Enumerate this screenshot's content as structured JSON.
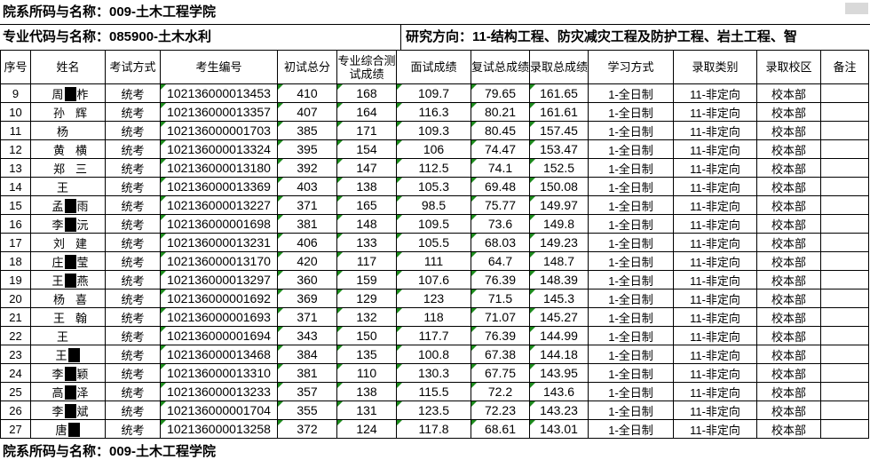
{
  "titles": {
    "dept_line": "院系所码与名称：009-土木工程学院",
    "major_line": "专业代码与名称：085900-土木水利",
    "direction_line": "研究方向：11-结构工程、防灾减灾工程及防护工程、岩土工程、智",
    "bottom_clipped_line": "院系所码与名称：009-土木工程学院"
  },
  "columns": [
    "序号",
    "姓名",
    "考试方式",
    "考生编号",
    "初试总分",
    "专业综合测试成绩",
    "面试成绩",
    "复试总成绩",
    "录取总成绩",
    "学习方式",
    "录取类别",
    "录取校区",
    "备注"
  ],
  "rows": [
    {
      "no": "9",
      "name": "周",
      "redact": "box",
      "frag": "柞",
      "exam": "统考",
      "id": "102136000013453",
      "init": "410",
      "prof": "168",
      "interview": "109.7",
      "retest": "79.65",
      "total": "161.65",
      "study": "1-全日制",
      "category": "11-非定向",
      "campus": "校本部",
      "note": ""
    },
    {
      "no": "10",
      "name": "孙",
      "redact": "gap",
      "frag": "辉",
      "exam": "统考",
      "id": "102136000013357",
      "init": "407",
      "prof": "164",
      "interview": "116.3",
      "retest": "80.21",
      "total": "161.61",
      "study": "1-全日制",
      "category": "11-非定向",
      "campus": "校本部",
      "note": ""
    },
    {
      "no": "11",
      "name": "杨",
      "redact": "gap",
      "frag": "",
      "exam": "统考",
      "id": "102136000001703",
      "init": "385",
      "prof": "171",
      "interview": "109.3",
      "retest": "80.45",
      "total": "157.45",
      "study": "1-全日制",
      "category": "11-非定向",
      "campus": "校本部",
      "note": ""
    },
    {
      "no": "12",
      "name": "黄",
      "redact": "gap",
      "frag": "横",
      "exam": "统考",
      "id": "102136000013324",
      "init": "395",
      "prof": "154",
      "interview": "106",
      "retest": "74.47",
      "total": "153.47",
      "study": "1-全日制",
      "category": "11-非定向",
      "campus": "校本部",
      "note": ""
    },
    {
      "no": "13",
      "name": "郑",
      "redact": "gap",
      "frag": "三",
      "exam": "统考",
      "id": "102136000013180",
      "init": "392",
      "prof": "147",
      "interview": "112.5",
      "retest": "74.1",
      "total": "152.5",
      "study": "1-全日制",
      "category": "11-非定向",
      "campus": "校本部",
      "note": ""
    },
    {
      "no": "14",
      "name": "王",
      "redact": "gap",
      "frag": "",
      "exam": "统考",
      "id": "102136000013369",
      "init": "403",
      "prof": "138",
      "interview": "105.3",
      "retest": "69.48",
      "total": "150.08",
      "study": "1-全日制",
      "category": "11-非定向",
      "campus": "校本部",
      "note": ""
    },
    {
      "no": "15",
      "name": "孟",
      "redact": "box",
      "frag": "雨",
      "exam": "统考",
      "id": "102136000013227",
      "init": "371",
      "prof": "165",
      "interview": "98.5",
      "retest": "75.77",
      "total": "149.97",
      "study": "1-全日制",
      "category": "11-非定向",
      "campus": "校本部",
      "note": ""
    },
    {
      "no": "16",
      "name": "李",
      "redact": "box",
      "frag": "沅",
      "exam": "统考",
      "id": "102136000001698",
      "init": "381",
      "prof": "148",
      "interview": "109.5",
      "retest": "73.6",
      "total": "149.8",
      "study": "1-全日制",
      "category": "11-非定向",
      "campus": "校本部",
      "note": ""
    },
    {
      "no": "17",
      "name": "刘",
      "redact": "gap",
      "frag": "建",
      "exam": "统考",
      "id": "102136000013231",
      "init": "406",
      "prof": "133",
      "interview": "105.5",
      "retest": "68.03",
      "total": "149.23",
      "study": "1-全日制",
      "category": "11-非定向",
      "campus": "校本部",
      "note": ""
    },
    {
      "no": "18",
      "name": "庄",
      "redact": "box",
      "frag": "莹",
      "exam": "统考",
      "id": "102136000013170",
      "init": "420",
      "prof": "117",
      "interview": "111",
      "retest": "64.7",
      "total": "148.7",
      "study": "1-全日制",
      "category": "11-非定向",
      "campus": "校本部",
      "note": ""
    },
    {
      "no": "19",
      "name": "王",
      "redact": "box",
      "frag": "燕",
      "exam": "统考",
      "id": "102136000013297",
      "init": "360",
      "prof": "159",
      "interview": "107.6",
      "retest": "76.39",
      "total": "148.39",
      "study": "1-全日制",
      "category": "11-非定向",
      "campus": "校本部",
      "note": ""
    },
    {
      "no": "20",
      "name": "杨",
      "redact": "gap",
      "frag": "喜",
      "exam": "统考",
      "id": "102136000001692",
      "init": "369",
      "prof": "129",
      "interview": "123",
      "retest": "71.5",
      "total": "145.3",
      "study": "1-全日制",
      "category": "11-非定向",
      "campus": "校本部",
      "note": ""
    },
    {
      "no": "21",
      "name": "王",
      "redact": "gap",
      "frag": "翰",
      "exam": "统考",
      "id": "102136000001693",
      "init": "371",
      "prof": "132",
      "interview": "118",
      "retest": "71.07",
      "total": "145.27",
      "study": "1-全日制",
      "category": "11-非定向",
      "campus": "校本部",
      "note": ""
    },
    {
      "no": "22",
      "name": "王",
      "redact": "gap",
      "frag": "",
      "exam": "统考",
      "id": "102136000001694",
      "init": "343",
      "prof": "150",
      "interview": "117.7",
      "retest": "76.39",
      "total": "144.99",
      "study": "1-全日制",
      "category": "11-非定向",
      "campus": "校本部",
      "note": ""
    },
    {
      "no": "23",
      "name": "王",
      "redact": "box",
      "frag": "",
      "exam": "统考",
      "id": "102136000013468",
      "init": "384",
      "prof": "135",
      "interview": "100.8",
      "retest": "67.38",
      "total": "144.18",
      "study": "1-全日制",
      "category": "11-非定向",
      "campus": "校本部",
      "note": ""
    },
    {
      "no": "24",
      "name": "李",
      "redact": "box",
      "frag": "颖",
      "exam": "统考",
      "id": "102136000013310",
      "init": "381",
      "prof": "110",
      "interview": "130.3",
      "retest": "67.75",
      "total": "143.95",
      "study": "1-全日制",
      "category": "11-非定向",
      "campus": "校本部",
      "note": ""
    },
    {
      "no": "25",
      "name": "高",
      "redact": "box",
      "frag": "泽",
      "exam": "统考",
      "id": "102136000013233",
      "init": "357",
      "prof": "138",
      "interview": "115.5",
      "retest": "72.2",
      "total": "143.6",
      "study": "1-全日制",
      "category": "11-非定向",
      "campus": "校本部",
      "note": ""
    },
    {
      "no": "26",
      "name": "李",
      "redact": "box",
      "frag": "斌",
      "exam": "统考",
      "id": "102136000001704",
      "init": "355",
      "prof": "131",
      "interview": "123.5",
      "retest": "72.23",
      "total": "143.23",
      "study": "1-全日制",
      "category": "11-非定向",
      "campus": "校本部",
      "note": ""
    },
    {
      "no": "27",
      "name": "唐",
      "redact": "box",
      "frag": "",
      "exam": "统考",
      "id": "102136000013258",
      "init": "372",
      "prof": "124",
      "interview": "117.8",
      "retest": "68.61",
      "total": "143.01",
      "study": "1-全日制",
      "category": "11-非定向",
      "campus": "校本部",
      "note": ""
    }
  ],
  "colors": {
    "grid_line": "#000000",
    "error_triangle": "#1d8c1d",
    "redaction": "#000000",
    "scroll_corner": "#d9d9d9"
  }
}
